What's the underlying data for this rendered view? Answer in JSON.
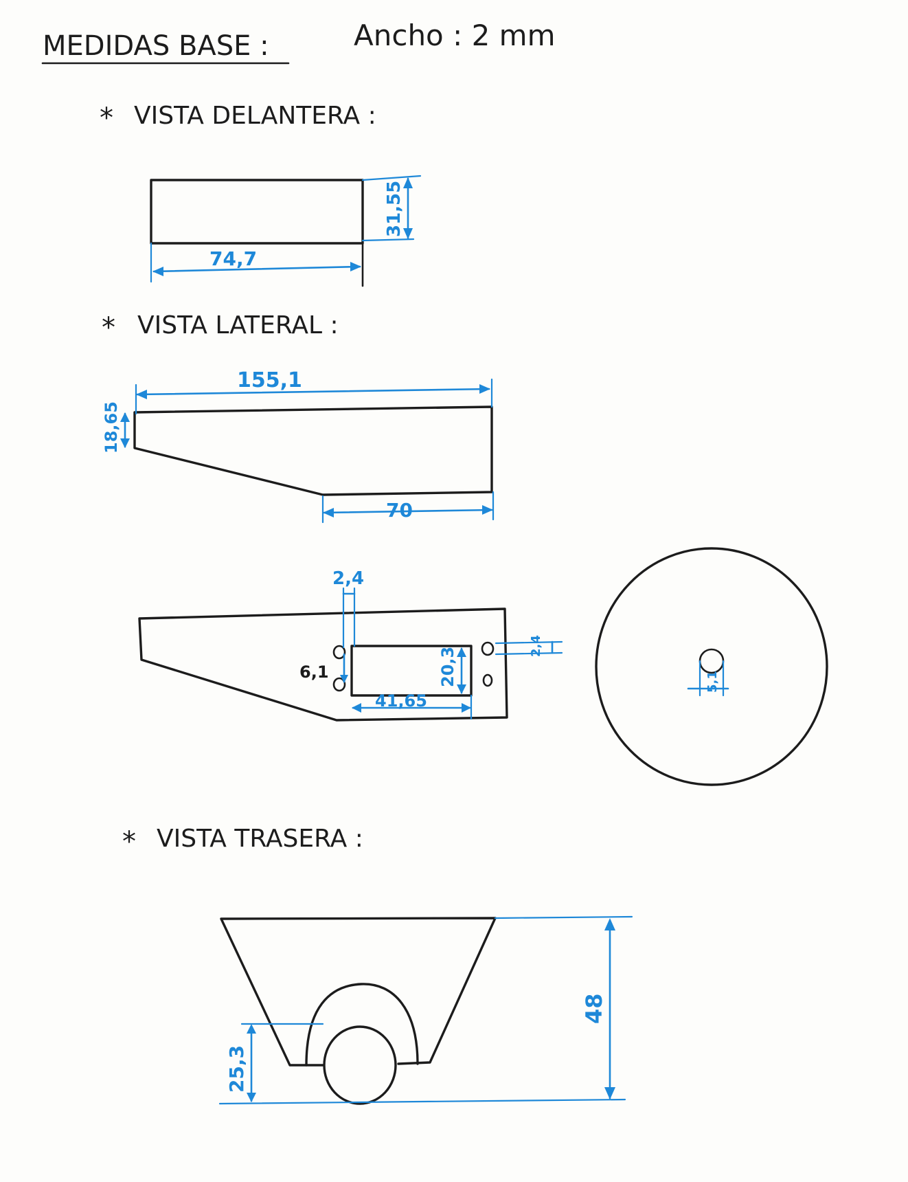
{
  "header": {
    "title": "MEDIDAS BASE :",
    "width_note": "Ancho : 2 mm"
  },
  "sections": {
    "front": {
      "bullet": "*",
      "label": "VISTA DELANTERA :"
    },
    "side": {
      "bullet": "*",
      "label": "VISTA LATERAL :"
    },
    "rear": {
      "bullet": "*",
      "label": "VISTA TRASERA :"
    }
  },
  "dimensions": {
    "front_width": "74,7",
    "front_height": "31,55",
    "side_length": "155,1",
    "side_front_height": "18,65",
    "side_bottom_length": "70",
    "slot_offset": "2,4",
    "hole_spacing": "6,1",
    "slot_height": "20,3",
    "slot_width": "41,65",
    "right_hole_offset": "2,4",
    "wheel_hole": "5,1",
    "rear_axle_height": "25,3",
    "rear_height": "48"
  },
  "colors": {
    "ink": "#1c1c1c",
    "dimension": "#1e88d8",
    "paper": "#fdfdfb"
  }
}
